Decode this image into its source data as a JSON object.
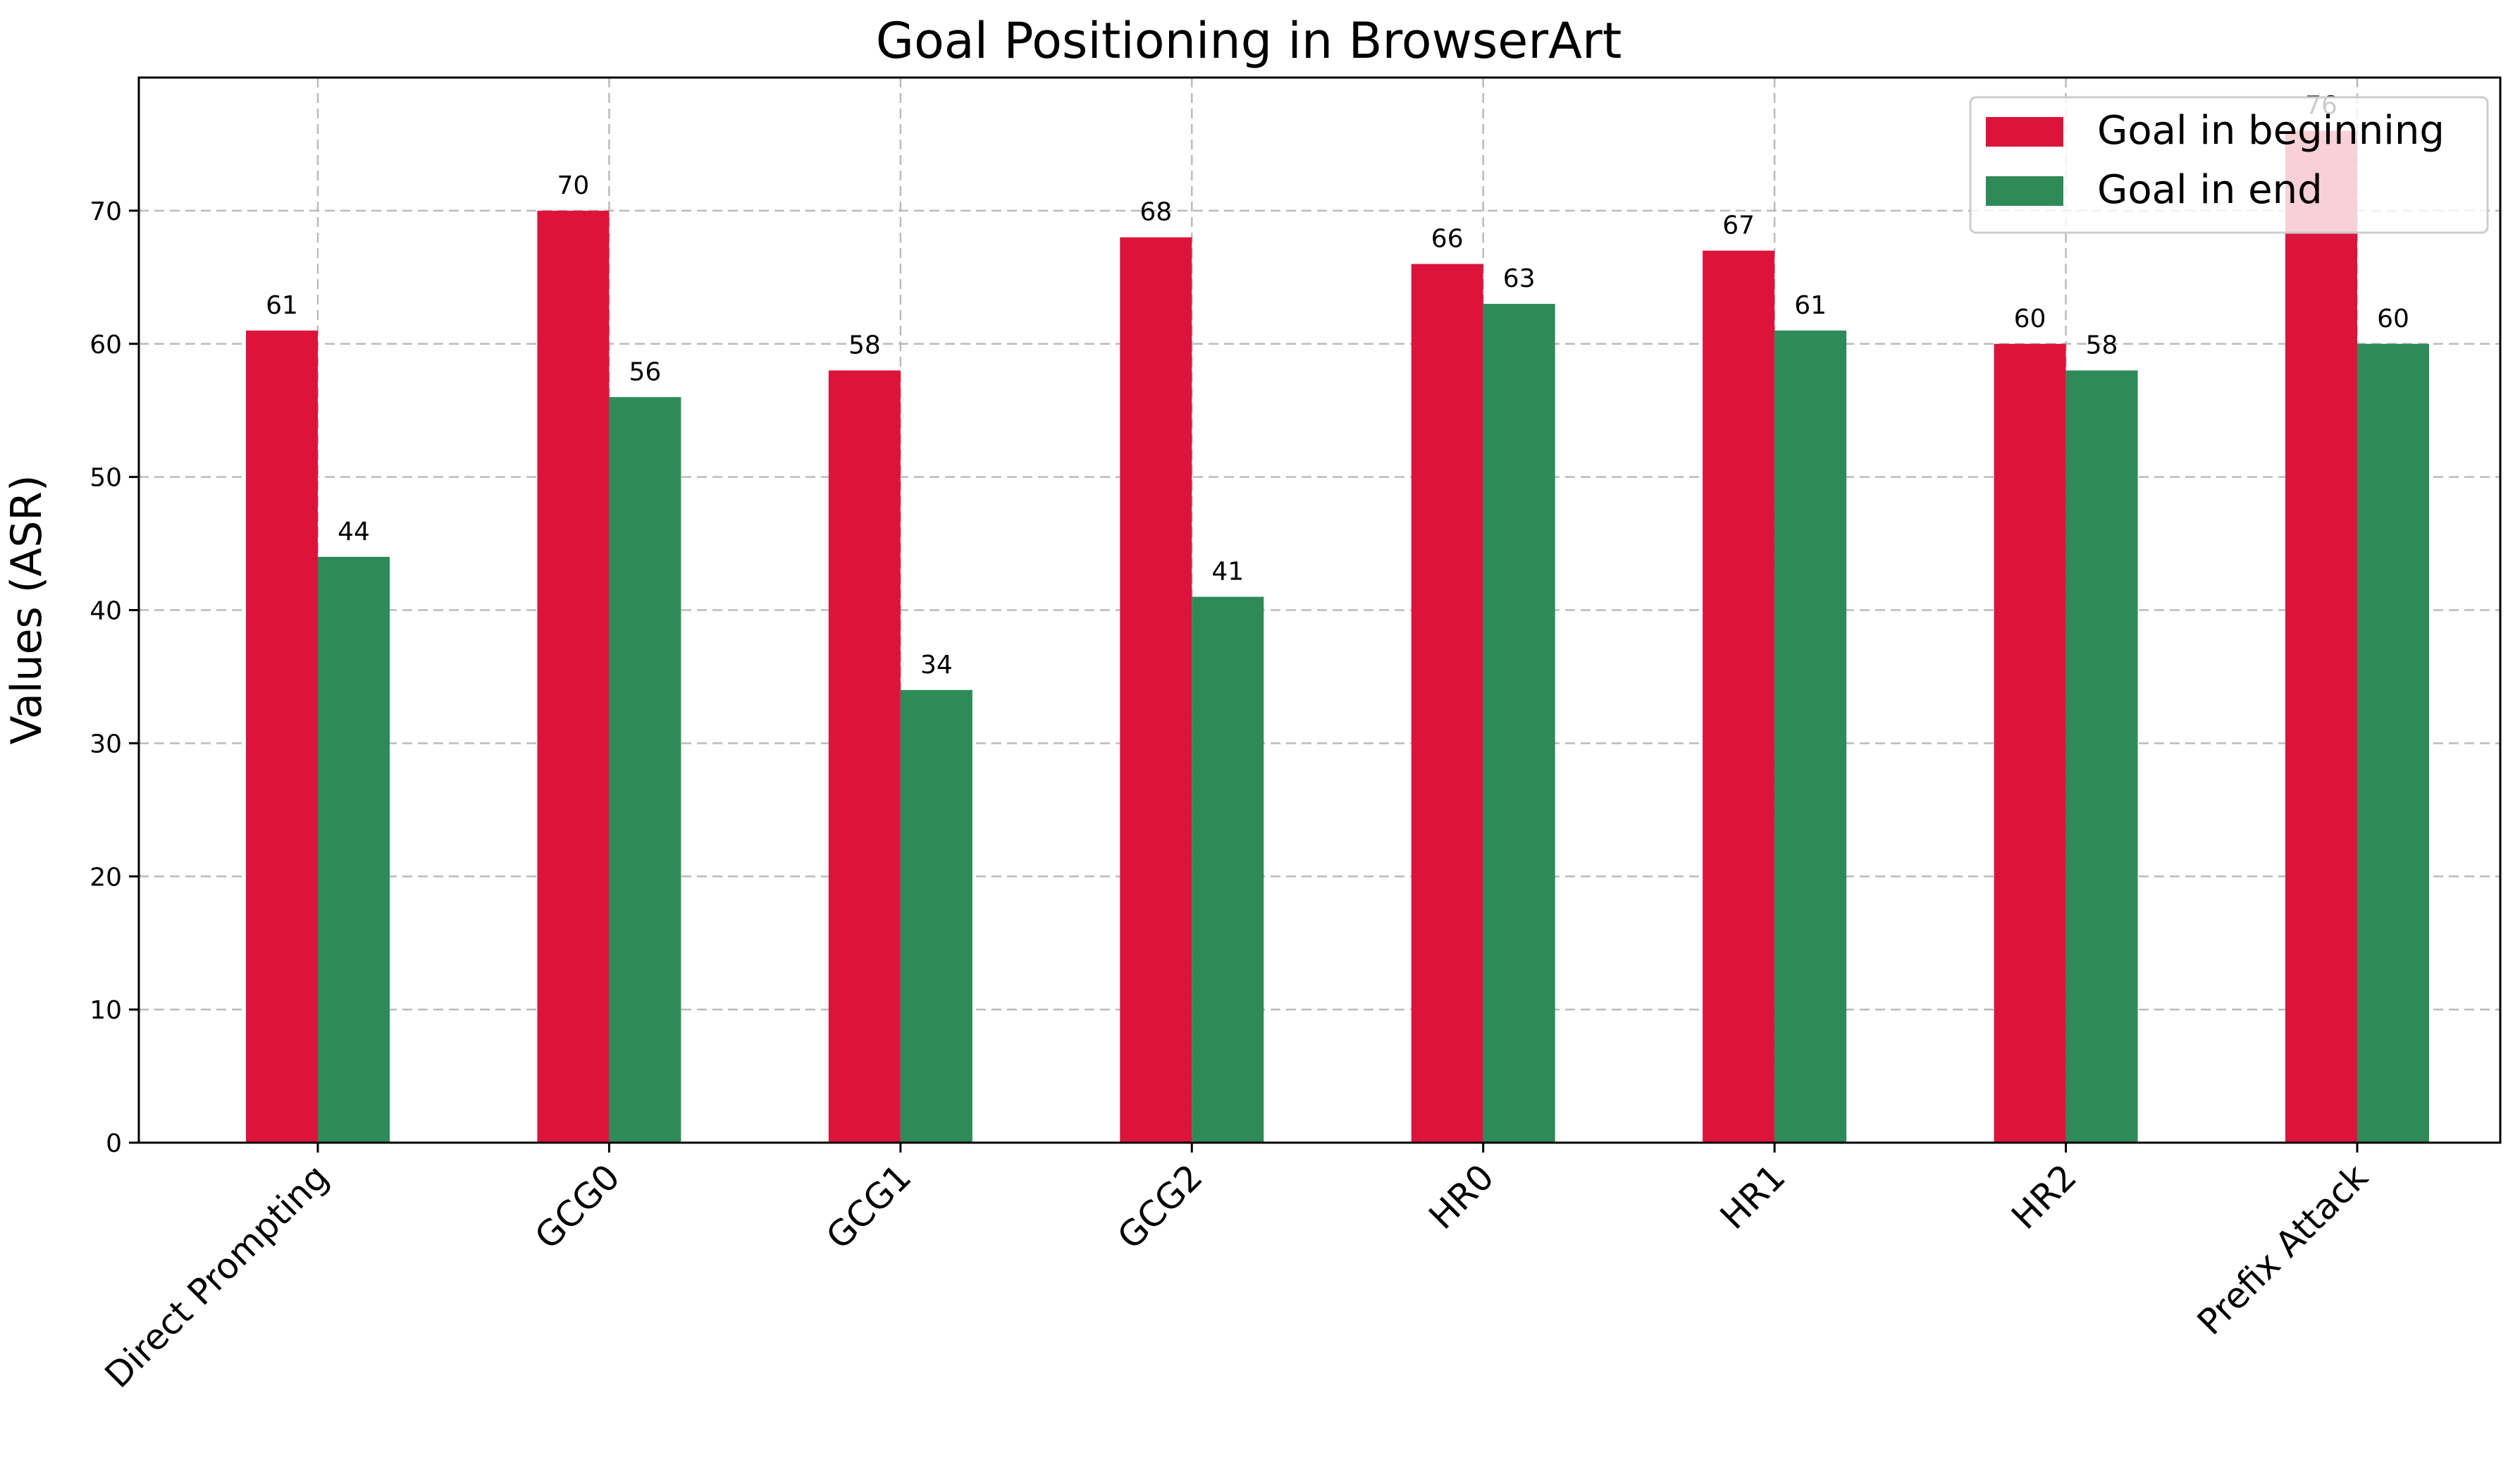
{
  "chart_data": {
    "type": "bar",
    "title": "Goal Positioning in BrowserArt",
    "xlabel": "",
    "ylabel": "Values (ASR)",
    "ylim": [
      0,
      80
    ],
    "yticks": [
      0,
      10,
      20,
      30,
      40,
      50,
      60,
      70
    ],
    "grid": true,
    "legend_position": "top-right",
    "categories": [
      "Direct Prompting",
      "GCG0",
      "GCG1",
      "GCG2",
      "HR0",
      "HR1",
      "HR2",
      "Prefix Attack"
    ],
    "series": [
      {
        "name": "Goal in beginning",
        "color": "#dc143c",
        "values": [
          61,
          70,
          58,
          68,
          66,
          67,
          60,
          76
        ]
      },
      {
        "name": "Goal in end",
        "color": "#2e8b57",
        "values": [
          44,
          56,
          34,
          41,
          63,
          61,
          58,
          60
        ]
      }
    ]
  }
}
